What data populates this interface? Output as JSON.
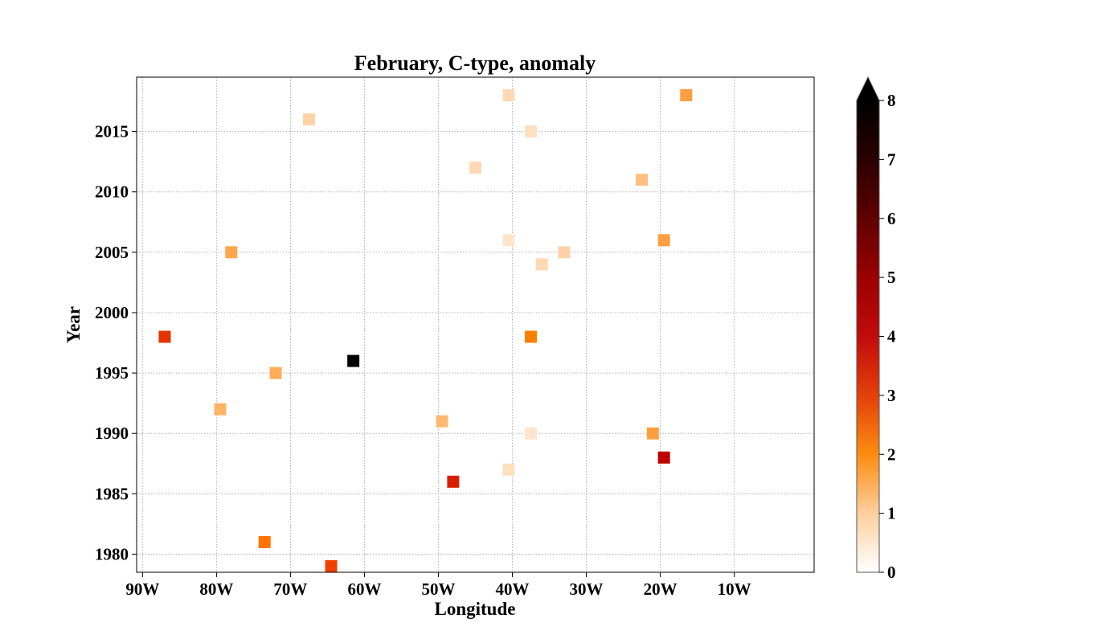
{
  "chart_data": {
    "type": "scatter",
    "title": "February, C-type, anomaly",
    "xlabel": "Longitude",
    "ylabel": "Year",
    "xlim": [
      -90.8,
      0.8
    ],
    "ylim": [
      1978.5,
      2019.5
    ],
    "x_ticks": [
      {
        "value": -90,
        "label": "90W"
      },
      {
        "value": -80,
        "label": "80W"
      },
      {
        "value": -70,
        "label": "70W"
      },
      {
        "value": -60,
        "label": "60W"
      },
      {
        "value": -50,
        "label": "50W"
      },
      {
        "value": -40,
        "label": "40W"
      },
      {
        "value": -30,
        "label": "30W"
      },
      {
        "value": -20,
        "label": "20W"
      },
      {
        "value": -10,
        "label": "10W"
      }
    ],
    "y_ticks": [
      {
        "value": 1980,
        "label": "1980"
      },
      {
        "value": 1985,
        "label": "1985"
      },
      {
        "value": 1990,
        "label": "1990"
      },
      {
        "value": 1995,
        "label": "1995"
      },
      {
        "value": 2000,
        "label": "2000"
      },
      {
        "value": 2005,
        "label": "2005"
      },
      {
        "value": 2010,
        "label": "2010"
      },
      {
        "value": 2015,
        "label": "2015"
      }
    ],
    "grid": true,
    "marker": "square",
    "colormap": "gist_heat_r",
    "colorbar": {
      "min": 0,
      "max": 8,
      "extend": "max",
      "ticks": [
        {
          "value": 0,
          "label": "0"
        },
        {
          "value": 1,
          "label": "1"
        },
        {
          "value": 2,
          "label": "2"
        },
        {
          "value": 3,
          "label": "3"
        },
        {
          "value": 4,
          "label": "4"
        },
        {
          "value": 5,
          "label": "5"
        },
        {
          "value": 6,
          "label": "6"
        },
        {
          "value": 7,
          "label": "7"
        },
        {
          "value": 8,
          "label": "8"
        }
      ]
    },
    "points": [
      {
        "lon": -40.5,
        "year": 2018,
        "value": 0.6
      },
      {
        "lon": -16.5,
        "year": 2018,
        "value": 1.5
      },
      {
        "lon": -67.5,
        "year": 2016,
        "value": 0.7
      },
      {
        "lon": -37.5,
        "year": 2015,
        "value": 0.5
      },
      {
        "lon": -45.0,
        "year": 2012,
        "value": 0.6
      },
      {
        "lon": -22.5,
        "year": 2011,
        "value": 1.0
      },
      {
        "lon": -40.5,
        "year": 2006,
        "value": 0.4
      },
      {
        "lon": -19.5,
        "year": 2006,
        "value": 1.5
      },
      {
        "lon": -78.0,
        "year": 2005,
        "value": 1.4
      },
      {
        "lon": -33.0,
        "year": 2005,
        "value": 0.7
      },
      {
        "lon": -36.0,
        "year": 2004,
        "value": 0.6
      },
      {
        "lon": -87.0,
        "year": 1998,
        "value": 3.2
      },
      {
        "lon": -37.5,
        "year": 1998,
        "value": 2.0
      },
      {
        "lon": -61.5,
        "year": 1996,
        "value": 8.0
      },
      {
        "lon": -72.0,
        "year": 1995,
        "value": 1.3
      },
      {
        "lon": -79.5,
        "year": 1992,
        "value": 1.2
      },
      {
        "lon": -49.5,
        "year": 1991,
        "value": 1.1
      },
      {
        "lon": -37.5,
        "year": 1990,
        "value": 0.4
      },
      {
        "lon": -21.0,
        "year": 1990,
        "value": 1.5
      },
      {
        "lon": -19.5,
        "year": 1988,
        "value": 4.0
      },
      {
        "lon": -40.5,
        "year": 1987,
        "value": 0.5
      },
      {
        "lon": -48.0,
        "year": 1986,
        "value": 3.5
      },
      {
        "lon": -73.5,
        "year": 1981,
        "value": 2.2
      },
      {
        "lon": -64.5,
        "year": 1979,
        "value": 3.0
      }
    ]
  }
}
